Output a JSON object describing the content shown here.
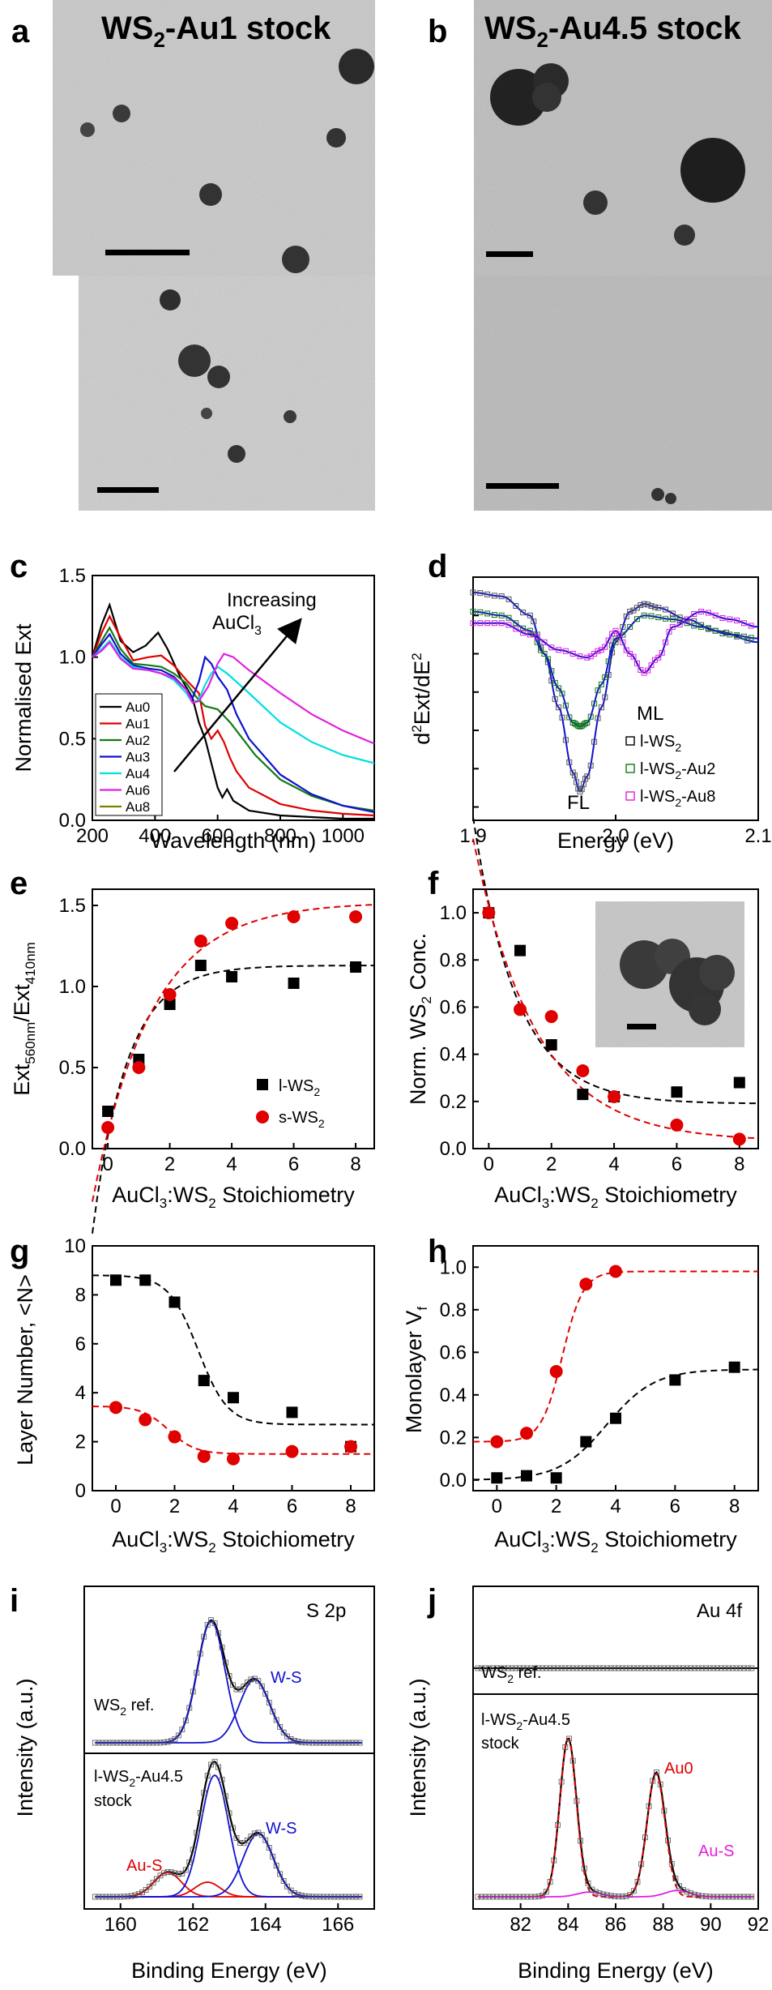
{
  "panels": {
    "a": {
      "letter": "a",
      "title_main": "WS",
      "title_sub": "2",
      "title_rest": "-Au1 stock"
    },
    "b": {
      "letter": "b",
      "title_main": "WS",
      "title_sub": "2",
      "title_rest": "-Au4.5 stock"
    },
    "c": {
      "letter": "c"
    },
    "d": {
      "letter": "d"
    },
    "e": {
      "letter": "e"
    },
    "f": {
      "letter": "f"
    },
    "g": {
      "letter": "g"
    },
    "h": {
      "letter": "h"
    },
    "i": {
      "letter": "i"
    },
    "j": {
      "letter": "j"
    }
  },
  "colors": {
    "au0": "#000000",
    "au1": "#e00000",
    "au2": "#127a12",
    "au3": "#1010d0",
    "au4": "#00e0e0",
    "au6": "#e020e0",
    "au8": "#808000",
    "red": "#e00000",
    "blue": "#1010d0"
  },
  "chart_data": [
    {
      "panel": "c",
      "type": "line",
      "xlabel": "Wavelength (nm)",
      "ylabel": "Normalised Ext",
      "xlim": [
        200,
        1100
      ],
      "ylim": [
        0,
        1.5
      ],
      "xticks": [
        "200",
        "400",
        "600",
        "800",
        "1000"
      ],
      "yticks": [
        "0.0",
        "0.5",
        "1.0",
        "1.5"
      ],
      "annotation_line1": "Increasing",
      "annotation_line2": "AuCl",
      "annotation_sub": "3",
      "legend_position": "bottom-left",
      "series": [
        {
          "name": "Au0",
          "x": [
            200,
            230,
            255,
            290,
            330,
            370,
            410,
            440,
            480,
            520,
            540,
            560,
            580,
            600,
            615,
            630,
            650,
            700,
            800,
            900,
            1000,
            1100
          ],
          "y": [
            1.0,
            1.2,
            1.32,
            1.1,
            1.03,
            1.07,
            1.15,
            1.05,
            0.88,
            0.75,
            0.6,
            0.5,
            0.35,
            0.2,
            0.14,
            0.19,
            0.12,
            0.06,
            0.03,
            0.02,
            0.01,
            0.01
          ]
        },
        {
          "name": "Au1",
          "x": [
            200,
            230,
            255,
            290,
            330,
            380,
            420,
            460,
            500,
            540,
            560,
            580,
            600,
            620,
            640,
            660,
            700,
            800,
            900,
            1000,
            1100
          ],
          "y": [
            1.0,
            1.15,
            1.25,
            1.12,
            0.98,
            1.0,
            1.01,
            0.95,
            0.86,
            0.78,
            0.58,
            0.5,
            0.55,
            0.48,
            0.38,
            0.3,
            0.2,
            0.1,
            0.06,
            0.04,
            0.03
          ]
        },
        {
          "name": "Au2",
          "x": [
            200,
            230,
            255,
            290,
            330,
            380,
            420,
            460,
            500,
            530,
            560,
            600,
            640,
            680,
            720,
            800,
            900,
            1000,
            1100
          ],
          "y": [
            1.0,
            1.1,
            1.18,
            1.05,
            0.96,
            0.95,
            0.94,
            0.9,
            0.84,
            0.76,
            0.7,
            0.68,
            0.6,
            0.5,
            0.4,
            0.25,
            0.15,
            0.09,
            0.06
          ]
        },
        {
          "name": "Au3",
          "x": [
            200,
            230,
            255,
            290,
            330,
            380,
            420,
            460,
            500,
            520,
            540,
            560,
            580,
            600,
            630,
            660,
            700,
            800,
            900,
            1000,
            1100
          ],
          "y": [
            1.0,
            1.08,
            1.14,
            1.02,
            0.95,
            0.93,
            0.92,
            0.88,
            0.8,
            0.75,
            0.85,
            1.0,
            0.96,
            0.88,
            0.8,
            0.65,
            0.5,
            0.28,
            0.16,
            0.09,
            0.05
          ]
        },
        {
          "name": "Au4",
          "x": [
            200,
            230,
            255,
            290,
            330,
            380,
            420,
            460,
            500,
            520,
            540,
            560,
            580,
            600,
            630,
            700,
            800,
            900,
            1000,
            1100
          ],
          "y": [
            1.0,
            1.05,
            1.1,
            1.0,
            0.94,
            0.92,
            0.9,
            0.86,
            0.78,
            0.72,
            0.74,
            0.83,
            0.9,
            0.94,
            0.9,
            0.78,
            0.6,
            0.48,
            0.4,
            0.35
          ]
        },
        {
          "name": "Au6",
          "x": [
            200,
            230,
            255,
            290,
            330,
            380,
            420,
            460,
            500,
            520,
            540,
            570,
            600,
            620,
            650,
            700,
            800,
            900,
            1000,
            1100
          ],
          "y": [
            1.0,
            1.04,
            1.09,
            0.99,
            0.93,
            0.92,
            0.9,
            0.87,
            0.8,
            0.72,
            0.73,
            0.82,
            0.96,
            1.02,
            1.0,
            0.92,
            0.78,
            0.65,
            0.55,
            0.47
          ]
        },
        {
          "name": "Au8"
        }
      ]
    },
    {
      "panel": "d",
      "type": "line",
      "xlabel": "Energy (eV)",
      "ylabel_main": "d",
      "ylabel_sup": "2",
      "ylabel_rest": "Ext/dE",
      "ylabel_sup2": "2",
      "xlim": [
        1.9,
        2.1
      ],
      "xticks": [
        "1.9",
        "2.0",
        "2.1"
      ],
      "labels": {
        "fl": "FL",
        "ml": "ML"
      },
      "series": [
        {
          "name_main": "l-WS",
          "name_sub": "2",
          "x": [
            1.9,
            1.92,
            1.94,
            1.95,
            1.96,
            1.97,
            1.975,
            1.98,
            1.99,
            2.0,
            2.01,
            2.02,
            2.03,
            2.05,
            2.07,
            2.1
          ],
          "y": [
            0.8,
            0.75,
            0.5,
            0.0,
            -0.7,
            -1.55,
            -1.8,
            -1.6,
            -0.7,
            0.15,
            0.55,
            0.65,
            0.6,
            0.45,
            0.3,
            0.15
          ]
        },
        {
          "name_main": "l-WS",
          "name_sub": "2",
          "name_rest": "-Au2",
          "x": [
            1.9,
            1.92,
            1.94,
            1.95,
            1.96,
            1.97,
            1.975,
            1.98,
            1.99,
            2.0,
            2.02,
            2.04,
            2.06,
            2.08,
            2.1
          ],
          "y": [
            0.55,
            0.5,
            0.3,
            0.0,
            -0.45,
            -0.9,
            -0.95,
            -0.9,
            -0.4,
            0.2,
            0.5,
            0.45,
            0.35,
            0.25,
            0.2
          ]
        },
        {
          "name_main": "l-WS",
          "name_sub": "2",
          "name_rest": "-Au8",
          "x": [
            1.9,
            1.92,
            1.94,
            1.96,
            1.98,
            1.99,
            2.0,
            2.01,
            2.02,
            2.03,
            2.04,
            2.06,
            2.08,
            2.1
          ],
          "y": [
            0.4,
            0.4,
            0.25,
            0.05,
            -0.05,
            0.05,
            0.3,
            0.0,
            -0.25,
            -0.05,
            0.35,
            0.55,
            0.45,
            0.35
          ]
        }
      ]
    },
    {
      "panel": "e",
      "type": "scatter",
      "ylabel_main": "Ext",
      "ylabel_sub1": "560nm",
      "ylabel_mid": "/Ext",
      "ylabel_sub2": "410nm",
      "xlabel_main": "AuCl",
      "xlabel_sub1": "3",
      "xlabel_mid": ":WS",
      "xlabel_sub2": "2",
      "xlabel_rest": " Stoichiometry",
      "xlim": [
        -0.5,
        8.6
      ],
      "ylim": [
        0,
        1.6
      ],
      "xticks": [
        "0",
        "2",
        "4",
        "6",
        "8"
      ],
      "yticks": [
        "0.0",
        "0.5",
        "1.0",
        "1.5"
      ],
      "series": [
        {
          "name_main": "l-WS",
          "name_sub": "2",
          "x": [
            0,
            1,
            2,
            3,
            4,
            6,
            8
          ],
          "y": [
            0.23,
            0.55,
            0.89,
            1.13,
            1.06,
            1.02,
            1.12
          ]
        },
        {
          "name_main": "s-WS",
          "name_sub": "2",
          "x": [
            0,
            1,
            2,
            3,
            4,
            6,
            8
          ],
          "y": [
            0.13,
            0.5,
            0.95,
            1.28,
            1.39,
            1.43,
            1.43
          ]
        }
      ]
    },
    {
      "panel": "f",
      "type": "scatter",
      "ylabel_main": "Norm. WS",
      "ylabel_sub": "2",
      "ylabel_rest": " Conc.",
      "xlabel_main": "AuCl",
      "xlabel_sub1": "3",
      "xlabel_mid": ":WS",
      "xlabel_sub2": "2",
      "xlabel_rest": " Stoichiometry",
      "xlim": [
        -0.5,
        8.6
      ],
      "ylim": [
        0,
        1.1
      ],
      "xticks": [
        "0",
        "2",
        "4",
        "6",
        "8"
      ],
      "yticks": [
        "0.0",
        "0.2",
        "0.4",
        "0.6",
        "0.8",
        "1.0"
      ],
      "series": [
        {
          "x": [
            0,
            1,
            2,
            3,
            4,
            6,
            8
          ],
          "y": [
            1.0,
            0.84,
            0.44,
            0.23,
            0.22,
            0.24,
            0.28
          ]
        },
        {
          "x": [
            0,
            1,
            2,
            3,
            4,
            6,
            8
          ],
          "y": [
            1.0,
            0.59,
            0.56,
            0.33,
            0.22,
            0.1,
            0.04
          ]
        }
      ]
    },
    {
      "panel": "g",
      "type": "scatter",
      "ylabel": "Layer Number, <N>",
      "xlabel_main": "AuCl",
      "xlabel_sub1": "3",
      "xlabel_mid": ":WS",
      "xlabel_sub2": "2",
      "xlabel_rest": " Stoichiometry",
      "xlim": [
        -0.8,
        8.8
      ],
      "ylim": [
        0,
        10
      ],
      "xticks": [
        "0",
        "2",
        "4",
        "6",
        "8"
      ],
      "yticks": [
        "0",
        "2",
        "4",
        "6",
        "8",
        "10"
      ],
      "series": [
        {
          "x": [
            0,
            1,
            2,
            3,
            4,
            6,
            8
          ],
          "y": [
            8.6,
            8.6,
            7.7,
            4.5,
            3.8,
            3.2,
            1.8
          ]
        },
        {
          "x": [
            0,
            1,
            2,
            3,
            4,
            6,
            8
          ],
          "y": [
            3.4,
            2.9,
            2.2,
            1.4,
            1.3,
            1.6,
            1.8
          ]
        }
      ]
    },
    {
      "panel": "h",
      "type": "scatter",
      "ylabel_main": "Monolayer V",
      "ylabel_sub": "f",
      "xlabel_main": "AuCl",
      "xlabel_sub1": "3",
      "xlabel_mid": ":WS",
      "xlabel_sub2": "2",
      "xlabel_rest": " Stoichiometry",
      "xlim": [
        -0.8,
        8.8
      ],
      "ylim": [
        -0.05,
        1.1
      ],
      "xticks": [
        "0",
        "2",
        "4",
        "6",
        "8"
      ],
      "yticks": [
        "0.0",
        "0.2",
        "0.4",
        "0.6",
        "0.8",
        "1.0"
      ],
      "series": [
        {
          "x": [
            0,
            1,
            2,
            3,
            4,
            6,
            8
          ],
          "y": [
            0.01,
            0.02,
            0.01,
            0.18,
            0.29,
            0.47,
            0.53
          ]
        },
        {
          "x": [
            0,
            1,
            2,
            3,
            4
          ],
          "y": [
            0.18,
            0.22,
            0.51,
            0.92,
            0.98
          ]
        }
      ]
    },
    {
      "panel": "i",
      "type": "line",
      "xlabel": "Binding Energy (eV)",
      "ylabel": "Intensity (a.u.)",
      "xlim": [
        159,
        167
      ],
      "xticks": [
        "160",
        "162",
        "164",
        "166"
      ],
      "title": "S 2p",
      "top_label_main": "WS",
      "top_label_sub": "2",
      "top_label_rest": " ref.",
      "bottom_label_line1_main": "l-WS",
      "bottom_label_line1_sub": "2",
      "bottom_label_line1_rest": "-Au4.5",
      "bottom_label_line2": "stock",
      "peak_labels": {
        "ws_top": "W-S",
        "ws_bottom": "W-S",
        "aus": "Au-S"
      },
      "peaks_ref": [
        162.5,
        163.7
      ],
      "peaks_sample": [
        161.3,
        162.4,
        162.6,
        163.8
      ]
    },
    {
      "panel": "j",
      "type": "line",
      "xlabel": "Binding Energy (eV)",
      "ylabel": "Intensity (a.u.)",
      "xlim": [
        80,
        92
      ],
      "xticks": [
        "82",
        "84",
        "86",
        "88",
        "90",
        "92"
      ],
      "title": "Au 4f",
      "top_label_main": "WS",
      "top_label_sub": "2",
      "top_label_rest": " ref.",
      "bottom_label_line1_main": "l-WS",
      "bottom_label_line1_sub": "2",
      "bottom_label_line1_rest": "-Au4.5",
      "bottom_label_line2": "stock",
      "peak_labels": {
        "au0": "Au0",
        "aus": "Au-S"
      },
      "peaks_sample": [
        84.0,
        87.7
      ]
    }
  ]
}
